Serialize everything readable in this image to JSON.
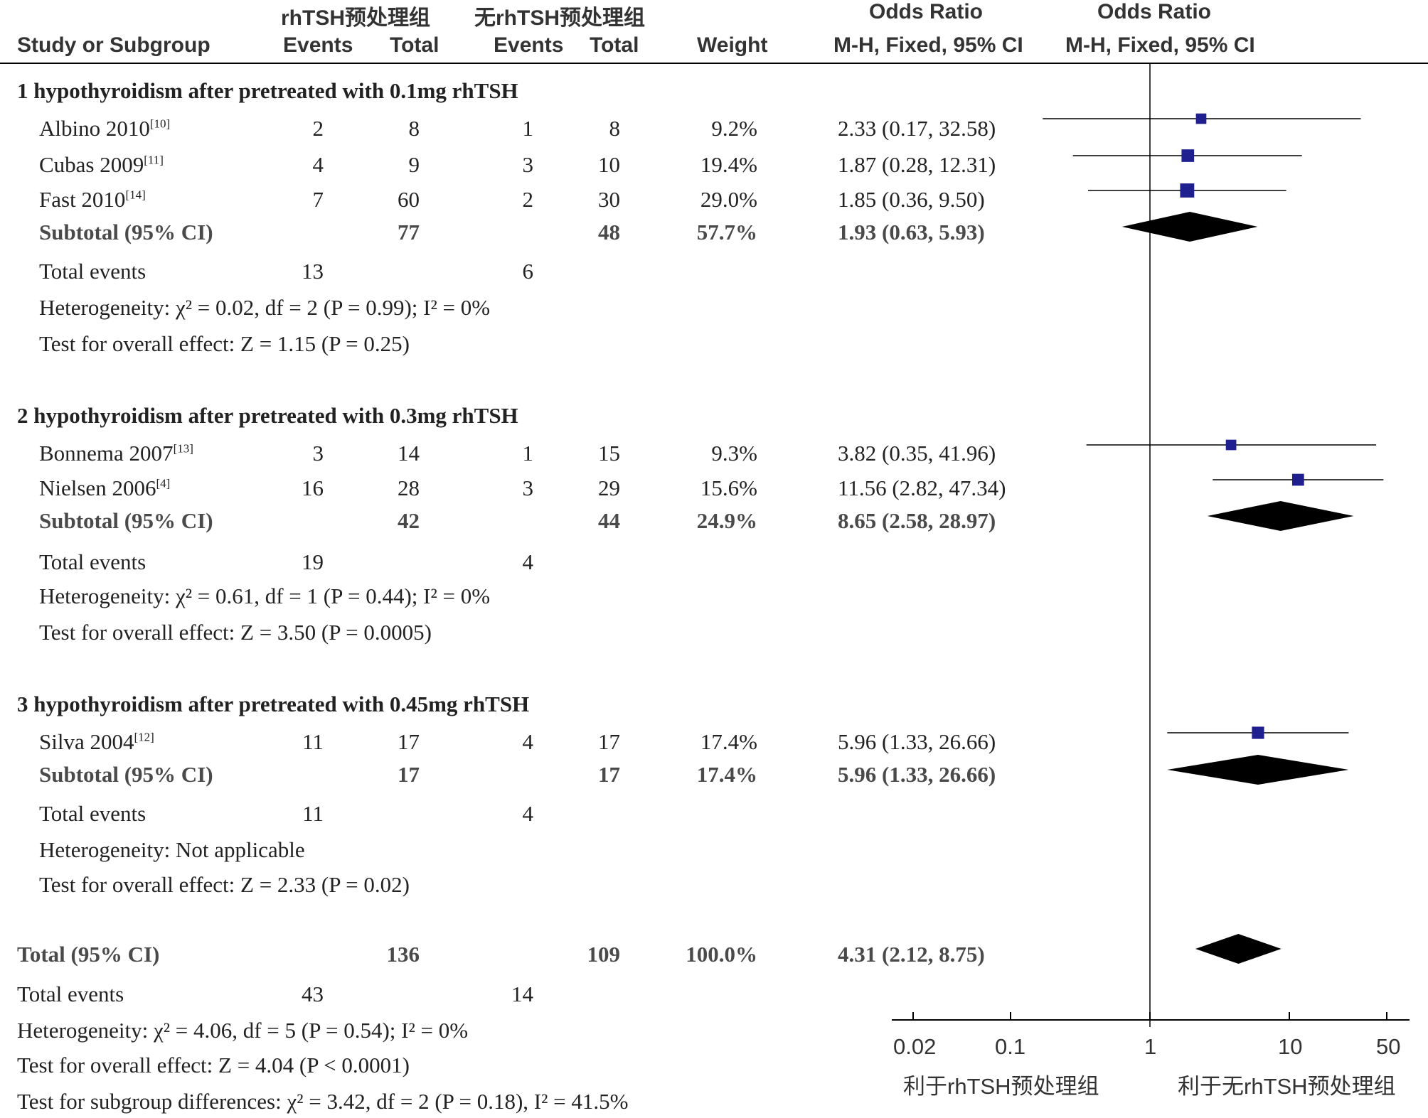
{
  "header": {
    "col_study": "Study or Subgroup",
    "group1": "rhTSH预处理组",
    "group2": "无rhTSH预处理组",
    "events": "Events",
    "total": "Total",
    "weight": "Weight",
    "or_title": "Odds Ratio",
    "or_method": "M-H, Fixed, 95% CI"
  },
  "subgroups": [
    {
      "title": "1 hypothyroidism after pretreated with 0.1mg rhTSH",
      "studies": [
        {
          "name": "Albino 2010",
          "ref": "[10]",
          "e1": "2",
          "t1": "8",
          "e2": "1",
          "t2": "8",
          "weight": "9.2%",
          "ci": "2.33 (0.17, 32.58)"
        },
        {
          "name": "Cubas 2009",
          "ref": "[11]",
          "e1": "4",
          "t1": "9",
          "e2": "3",
          "t2": "10",
          "weight": "19.4%",
          "ci": "1.87 (0.28, 12.31)"
        },
        {
          "name": "Fast 2010",
          "ref": "[14]",
          "e1": "7",
          "t1": "60",
          "e2": "2",
          "t2": "30",
          "weight": "29.0%",
          "ci": "1.85 (0.36, 9.50)"
        }
      ],
      "subtotal": {
        "label": "Subtotal (95% CI)",
        "t1": "77",
        "t2": "48",
        "weight": "57.7%",
        "ci": "1.93 (0.63, 5.93)"
      },
      "events": {
        "label": "Total events",
        "e1": "13",
        "e2": "6"
      },
      "heterogeneity": "Heterogeneity: χ² = 0.02, df = 2 (P = 0.99); I² = 0%",
      "overall": "Test for overall effect: Z = 1.15 (P = 0.25)"
    },
    {
      "title": "2 hypothyroidism after pretreated with 0.3mg rhTSH",
      "studies": [
        {
          "name": "Bonnema 2007",
          "ref": "[13]",
          "e1": "3",
          "t1": "14",
          "e2": "1",
          "t2": "15",
          "weight": "9.3%",
          "ci": "3.82 (0.35, 41.96)"
        },
        {
          "name": "Nielsen 2006",
          "ref": "[4]",
          "e1": "16",
          "t1": "28",
          "e2": "3",
          "t2": "29",
          "weight": "15.6%",
          "ci": "11.56 (2.82, 47.34)"
        }
      ],
      "subtotal": {
        "label": "Subtotal (95% CI)",
        "t1": "42",
        "t2": "44",
        "weight": "24.9%",
        "ci": "8.65 (2.58, 28.97)"
      },
      "events": {
        "label": "Total events",
        "e1": "19",
        "e2": "4"
      },
      "heterogeneity": "Heterogeneity: χ² = 0.61, df = 1 (P = 0.44); I² = 0%",
      "overall": "Test for overall effect: Z = 3.50 (P = 0.0005)"
    },
    {
      "title": "3 hypothyroidism after pretreated with 0.45mg rhTSH",
      "studies": [
        {
          "name": "Silva 2004",
          "ref": "[12]",
          "e1": "11",
          "t1": "17",
          "e2": "4",
          "t2": "17",
          "weight": "17.4%",
          "ci": "5.96 (1.33, 26.66)"
        }
      ],
      "subtotal": {
        "label": "Subtotal (95% CI)",
        "t1": "17",
        "t2": "17",
        "weight": "17.4%",
        "ci": "5.96 (1.33, 26.66)"
      },
      "events": {
        "label": "Total events",
        "e1": "11",
        "e2": "4"
      },
      "heterogeneity": "Heterogeneity: Not applicable",
      "overall": "Test for overall effect: Z = 2.33 (P = 0.02)"
    }
  ],
  "total": {
    "label": "Total (95% CI)",
    "t1": "136",
    "t2": "109",
    "weight": "100.0%",
    "ci": "4.31 (2.12, 8.75)",
    "events_label": "Total events",
    "e1": "43",
    "e2": "14",
    "heterogeneity": "Heterogeneity: χ² = 4.06, df = 5 (P = 0.54); I² = 0%",
    "overall": "Test for overall effect: Z = 4.04 (P < 0.0001)",
    "subgroup_diff": "Test for subgroup differences: χ² = 3.42, df = 2 (P = 0.18), I² = 41.5%"
  },
  "axis": {
    "ticks": [
      "0.02",
      "0.1",
      "1",
      "10",
      "50"
    ],
    "favours_left": "利于rhTSH预处理组",
    "favours_right": "利于无rhTSH预处理组"
  },
  "colors": {
    "square": "#1f1f8f",
    "diamond": "#000000",
    "line": "#000000"
  },
  "chart_data": {
    "type": "forest",
    "scale": "log",
    "xlim": [
      0.02,
      50
    ],
    "null_value": 1,
    "x_ticks": [
      0.02,
      0.1,
      1,
      10,
      50
    ],
    "studies": [
      {
        "name": "Albino 2010",
        "or": 2.33,
        "lo": 0.17,
        "hi": 32.58,
        "weight": 9.2
      },
      {
        "name": "Cubas 2009",
        "or": 1.87,
        "lo": 0.28,
        "hi": 12.31,
        "weight": 19.4
      },
      {
        "name": "Fast 2010",
        "or": 1.85,
        "lo": 0.36,
        "hi": 9.5,
        "weight": 29.0
      },
      {
        "name": "Bonnema 2007",
        "or": 3.82,
        "lo": 0.35,
        "hi": 41.96,
        "weight": 9.3
      },
      {
        "name": "Nielsen 2006",
        "or": 11.56,
        "lo": 2.82,
        "hi": 47.34,
        "weight": 15.6
      },
      {
        "name": "Silva 2004",
        "or": 5.96,
        "lo": 1.33,
        "hi": 26.66,
        "weight": 17.4
      }
    ],
    "pooled": [
      {
        "name": "Subtotal 1",
        "or": 1.93,
        "lo": 0.63,
        "hi": 5.93
      },
      {
        "name": "Subtotal 2",
        "or": 8.65,
        "lo": 2.58,
        "hi": 28.97
      },
      {
        "name": "Subtotal 3",
        "or": 5.96,
        "lo": 1.33,
        "hi": 26.66
      },
      {
        "name": "Total",
        "or": 4.31,
        "lo": 2.12,
        "hi": 8.75
      }
    ]
  }
}
